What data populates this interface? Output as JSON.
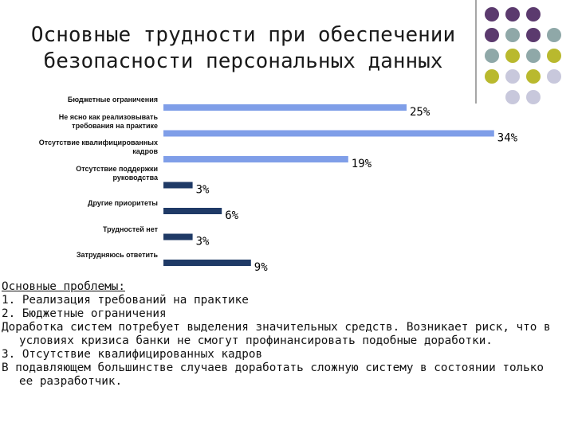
{
  "chart_data": {
    "type": "hbar",
    "title": "Основные трудности при обеспечении безопасности персональных данных",
    "categories": [
      "Бюджетные ограничения",
      "Не ясно как реализовывать требования на практике",
      "Отсутствие квалифицированных кадров",
      "Отсутствие поддержки руководства",
      "Другие приоритеты",
      "Трудностей нет",
      "Затрудняюсь ответить"
    ],
    "values": [
      25,
      34,
      19,
      3,
      6,
      3,
      9
    ],
    "value_labels": [
      "25%",
      "34%",
      "19%",
      "3%",
      "6%",
      "3%",
      "9%"
    ],
    "colors": [
      "#7f9ee8",
      "#7f9ee8",
      "#7f9ee8",
      "#1f3a66",
      "#1f3a66",
      "#1f3a66",
      "#1f3a66"
    ],
    "xlim": [
      0,
      40
    ]
  },
  "notes": {
    "heading": "Основные проблемы:",
    "items": [
      "1. Реализация требований на практике",
      "2. Бюджетные ограничения",
      "Доработка систем потребует выделения значительных средств. Возникает риск, что в условиях кризиса банки не смогут профинансировать подобные доработки.",
      "3. Отсутствие квалифицированных кадров",
      "В подавляющем большинстве случаев доработать сложную систему в состоянии только ее разработчик."
    ]
  }
}
